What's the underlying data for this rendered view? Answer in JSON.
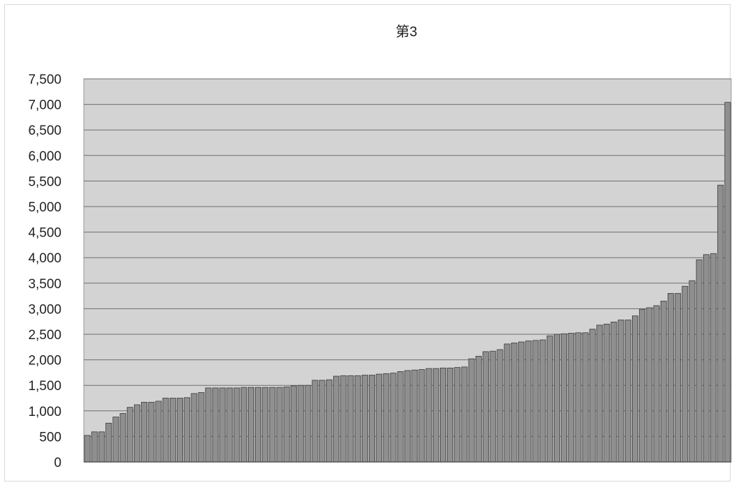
{
  "chart_data": {
    "type": "bar",
    "title": "第3",
    "xlabel": "",
    "ylabel": "",
    "ylim": [
      0,
      7500
    ],
    "yticks": [
      0,
      500,
      1000,
      1500,
      2000,
      2500,
      3000,
      3500,
      4000,
      4500,
      5000,
      5500,
      6000,
      6500,
      7000,
      7500
    ],
    "ytick_labels": [
      "0",
      "500",
      "1,000",
      "1,500",
      "2,000",
      "2,500",
      "3,000",
      "3,500",
      "4,000",
      "4,500",
      "5,000",
      "5,500",
      "6,000",
      "6,500",
      "7,000",
      "7,500"
    ],
    "grid": true,
    "legend": "none",
    "values": [
      520,
      590,
      590,
      760,
      880,
      950,
      1070,
      1120,
      1170,
      1170,
      1190,
      1250,
      1250,
      1250,
      1260,
      1340,
      1360,
      1450,
      1450,
      1450,
      1450,
      1450,
      1460,
      1460,
      1460,
      1460,
      1460,
      1460,
      1470,
      1490,
      1500,
      1500,
      1600,
      1600,
      1610,
      1680,
      1690,
      1690,
      1690,
      1700,
      1700,
      1720,
      1730,
      1740,
      1770,
      1790,
      1800,
      1810,
      1830,
      1830,
      1840,
      1840,
      1850,
      1860,
      2020,
      2070,
      2160,
      2170,
      2200,
      2310,
      2330,
      2350,
      2370,
      2380,
      2390,
      2470,
      2500,
      2510,
      2520,
      2530,
      2530,
      2600,
      2680,
      2700,
      2740,
      2780,
      2780,
      2860,
      2990,
      3020,
      3060,
      3150,
      3300,
      3300,
      3440,
      3550,
      3960,
      4060,
      4080,
      5420,
      7040
    ]
  },
  "colors": {
    "plot_background": "#d3d3d3",
    "bar_fill": "#8f8f8f",
    "bar_stroke": "#3a3a3a",
    "grid_line": "#6e6e6e",
    "frame_border": "#d9d9d9"
  }
}
